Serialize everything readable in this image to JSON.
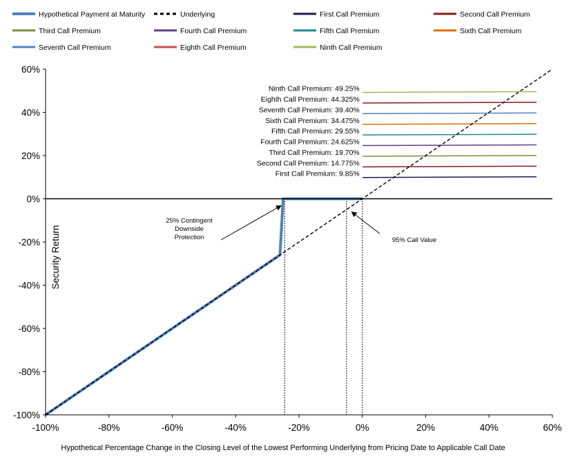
{
  "chart_data": {
    "type": "line",
    "xlabel": "Hypothetical  Percentage  Change  in  the  Closing  Level  of  the  Lowest  Performing  Underlying  from  Pricing  Date  to  Applicable  Call  Date",
    "ylabel": "Security  Return",
    "xlim": [
      -100,
      60
    ],
    "ylim": [
      -100,
      60
    ],
    "x_ticks": [
      {
        "v": -100,
        "label": "-100%"
      },
      {
        "v": -80,
        "label": "-80%"
      },
      {
        "v": -60,
        "label": "-60%"
      },
      {
        "v": -40,
        "label": "-40%"
      },
      {
        "v": -20,
        "label": "-20%"
      },
      {
        "v": 0,
        "label": "0%"
      },
      {
        "v": 20,
        "label": "20%"
      },
      {
        "v": 40,
        "label": "40%"
      },
      {
        "v": 60,
        "label": "60%"
      }
    ],
    "y_ticks": [
      {
        "v": 60,
        "label": "60%"
      },
      {
        "v": 40,
        "label": "40%"
      },
      {
        "v": 20,
        "label": "20%"
      },
      {
        "v": 0,
        "label": "0%"
      },
      {
        "v": -20,
        "label": "-20%"
      },
      {
        "v": -40,
        "label": "-40%"
      },
      {
        "v": -60,
        "label": "-60%"
      },
      {
        "v": -80,
        "label": "-80%"
      },
      {
        "v": -100,
        "label": "-100%"
      }
    ],
    "grid": false,
    "legend_position": "top",
    "legend": [
      {
        "name": "Hypothetical Payment at Maturity",
        "color": "#4f81bd",
        "style": "thick"
      },
      {
        "name": "Underlying",
        "color": "#000000",
        "style": "dashed"
      },
      {
        "name": "First Call Premium",
        "color": "#1f1a4f",
        "style": "solid"
      },
      {
        "name": "Second Call Premium",
        "color": "#8b1a1a",
        "style": "solid"
      },
      {
        "name": "Third Call Premium",
        "color": "#76923c",
        "style": "solid"
      },
      {
        "name": "Fourth Call Premium",
        "color": "#5f3c8c",
        "style": "solid"
      },
      {
        "name": "Fifth Call Premium",
        "color": "#1f8a8a",
        "style": "solid"
      },
      {
        "name": "Sixth Call Premium",
        "color": "#e36c09",
        "style": "solid"
      },
      {
        "name": "Seventh Call Premium",
        "color": "#4f81bd",
        "style": "solid"
      },
      {
        "name": "Eighth Call Premium",
        "color": "#c0504d",
        "style": "solid"
      },
      {
        "name": "Ninth Call Premium",
        "color": "#9bbb59",
        "style": "solid"
      }
    ],
    "series": [
      {
        "name": "Hypothetical Payment at Maturity",
        "color": "#4f81bd",
        "x": [
          -100,
          -26,
          -25,
          -5,
          0
        ],
        "y": [
          -100,
          -26,
          0,
          0,
          0
        ]
      },
      {
        "name": "Underlying",
        "color": "#000000",
        "x": [
          -100,
          60
        ],
        "y": [
          -100,
          60
        ]
      }
    ],
    "premium_lines": [
      {
        "label": "Ninth Call Premium: 49.25%",
        "value": 49.25,
        "color": "#9bbb59",
        "x_start": 0,
        "x_end": 55
      },
      {
        "label": "Eighth Call Premium: 44.325%",
        "value": 44.325,
        "color": "#8b1a1a",
        "x_start": 0,
        "x_end": 55
      },
      {
        "label": "Seventh  Call Premium: 39.40%",
        "value": 39.4,
        "color": "#4f81bd",
        "x_start": 0,
        "x_end": 55
      },
      {
        "label": "Sixth Call Premium: 34.475%",
        "value": 34.475,
        "color": "#e36c09",
        "x_start": 0,
        "x_end": 55
      },
      {
        "label": "Fifth Call Premium: 29.55%",
        "value": 29.55,
        "color": "#1f8a8a",
        "x_start": 0,
        "x_end": 55
      },
      {
        "label": "Fourth  Call Premium: 24.625%",
        "value": 24.625,
        "color": "#5f3c8c",
        "x_start": 0,
        "x_end": 55
      },
      {
        "label": "Third Call Premium: 19.70%",
        "value": 19.7,
        "color": "#76923c",
        "x_start": 0,
        "x_end": 55
      },
      {
        "label": "Second Call Premium: 14.775%",
        "value": 14.775,
        "color": "#8b1a1a",
        "x_start": 0,
        "x_end": 55
      },
      {
        "label": "First Call Premium: 9.85%",
        "value": 9.85,
        "color": "#1f1a4f",
        "x_start": 0,
        "x_end": 55
      }
    ],
    "reference_lines": [
      {
        "x": -24.5,
        "y_from": 0,
        "y_to": -100
      },
      {
        "x": -5,
        "y_from": 0,
        "y_to": -100
      },
      {
        "x": 0,
        "y_from": 0,
        "y_to": -100
      }
    ],
    "annotations": [
      {
        "lines": [
          "25% Contingent",
          "Downside",
          "Protection"
        ],
        "target_x": -25,
        "target_y": 0
      },
      {
        "lines": [
          "95% Call Value"
        ],
        "target_x": -4,
        "target_y": -8
      }
    ]
  }
}
